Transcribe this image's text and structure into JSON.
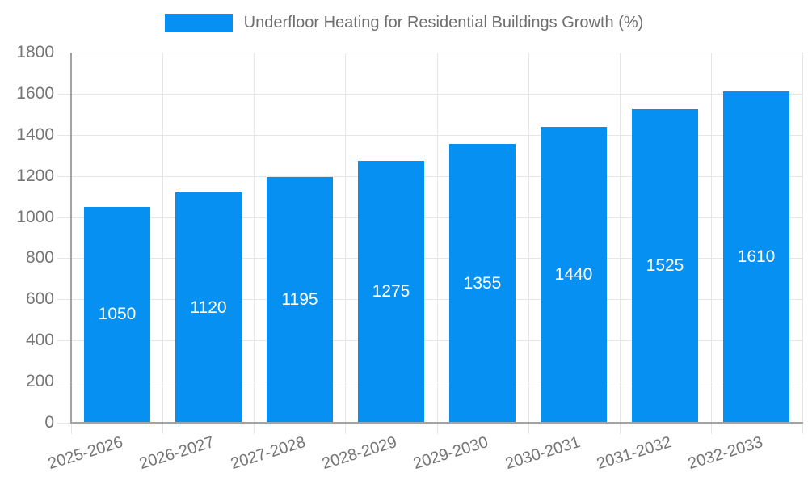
{
  "chart_data": {
    "type": "bar",
    "title": "Underfloor Heating for Residential Buildings Growth (%)",
    "categories": [
      "2025-2026",
      "2026-2027",
      "2027-2028",
      "2028-2029",
      "2029-2030",
      "2030-2031",
      "2031-2032",
      "2032-2033"
    ],
    "values": [
      1050,
      1120,
      1195,
      1275,
      1355,
      1440,
      1525,
      1610
    ],
    "xlabel": "",
    "ylabel": "",
    "ylim": [
      0,
      1800
    ],
    "ytick_step": 200,
    "grid": "on",
    "legend_position": "top-center",
    "bar_color": "#0690f2",
    "bar_value_label_color": "#ffffff",
    "axis_text_color": "#757575",
    "legend_text_color": "#6e6e6e",
    "grid_line_color": "#e6e6e6",
    "axis_line_color": "#a3a3a3"
  }
}
